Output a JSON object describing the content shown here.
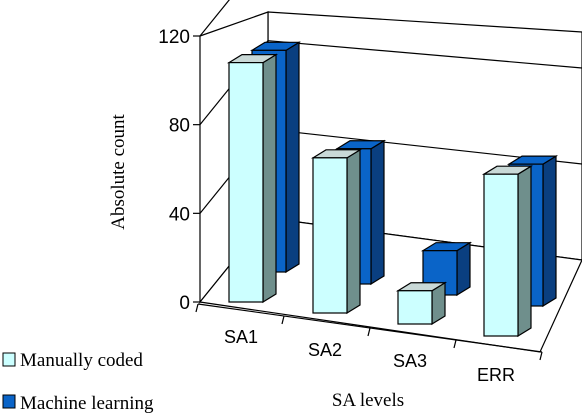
{
  "chart_data": {
    "type": "bar",
    "style": "3d-clustered",
    "categories": [
      "SA1",
      "SA2",
      "SA3",
      "ERR"
    ],
    "series": [
      {
        "name": "Manually coded",
        "values": [
          108,
          70,
          15,
          73
        ],
        "color": "#ccffff"
      },
      {
        "name": "Machine learning",
        "values": [
          100,
          61,
          20,
          64
        ],
        "color": "#0a64c8"
      }
    ],
    "title": "",
    "xlabel": "SA levels",
    "ylabel": "Absolute count",
    "ylim": [
      0,
      120
    ],
    "yticks": [
      "0",
      "40",
      "80",
      "120"
    ],
    "grid": true,
    "legend": "bottom-left"
  }
}
